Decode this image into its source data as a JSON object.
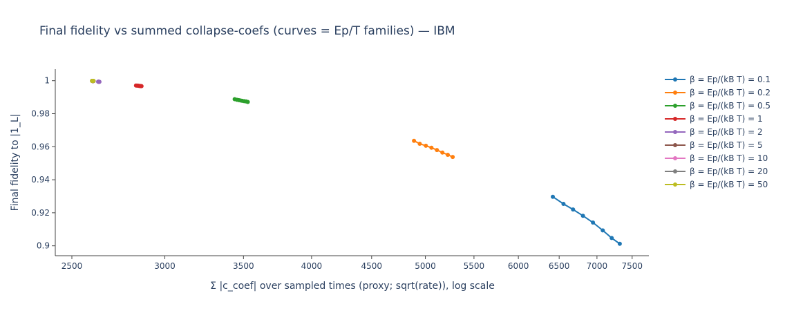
{
  "chart_data": {
    "type": "line",
    "title": "Final fidelity vs summed collapse-coefs (curves = Ep/T families) — IBM",
    "xlabel": "Σ |c_coef| over sampled times (proxy; sqrt(rate)), log scale",
    "ylabel": "Final fidelity to |1_L|",
    "xscale": "log",
    "xlim": [
      2420,
      7750
    ],
    "ylim": [
      0.894,
      1.007
    ],
    "xticks": [
      2500,
      3000,
      3500,
      4000,
      4500,
      5000,
      5500,
      6000,
      6500,
      7000,
      7500
    ],
    "xtick_labels": [
      "2500",
      "3000",
      "3500",
      "4000",
      "4500",
      "5000",
      "5500",
      "6000",
      "6500",
      "7000",
      "7500"
    ],
    "yticks": [
      0.9,
      0.92,
      0.94,
      0.96,
      0.98,
      1
    ],
    "ytick_labels": [
      "0.9",
      "0.92",
      "0.94",
      "0.96",
      "0.98",
      "1"
    ],
    "grid": false,
    "legend_position": "right",
    "series": [
      {
        "name": "β = Ep/(kB T) = 0.1",
        "color": "#1f77b4",
        "x": [
          6420,
          6555,
          6680,
          6810,
          6945,
          7080,
          7205,
          7320
        ],
        "y": [
          0.9297,
          0.9254,
          0.922,
          0.9182,
          0.9141,
          0.9093,
          0.9047,
          0.9012
        ]
      },
      {
        "name": "β = Ep/(kB T) = 0.2",
        "color": "#ff7f0e",
        "x": [
          4890,
          4945,
          5005,
          5060,
          5115,
          5170,
          5225,
          5275
        ],
        "y": [
          0.9636,
          0.9618,
          0.9606,
          0.9594,
          0.958,
          0.9565,
          0.9551,
          0.9538
        ]
      },
      {
        "name": "β = Ep/(kB T) = 0.5",
        "color": "#2ca02c",
        "x": [
          3440,
          3455,
          3468,
          3480,
          3492,
          3505,
          3518,
          3530
        ],
        "y": [
          0.9888,
          0.9884,
          0.9882,
          0.988,
          0.9878,
          0.9876,
          0.9874,
          0.9871
        ]
      },
      {
        "name": "β = Ep/(kB T) = 1",
        "color": "#d62728",
        "x": [
          2835,
          2840,
          2845,
          2850,
          2854,
          2858,
          2862,
          2866
        ],
        "y": [
          0.9971,
          0.997,
          0.997,
          0.9969,
          0.9968,
          0.9968,
          0.9967,
          0.9967
        ]
      },
      {
        "name": "β = Ep/(kB T) = 2",
        "color": "#9467bd",
        "x": [
          2632,
          2633,
          2634,
          2635,
          2636,
          2637,
          2638,
          2639
        ],
        "y": [
          0.9994,
          0.9994,
          0.9994,
          0.9994,
          0.9994,
          0.9993,
          0.9993,
          0.9993
        ]
      },
      {
        "name": "β = Ep/(kB T) = 5",
        "color": "#8c564b",
        "x": [
          2602,
          2603,
          2604,
          2605,
          2606,
          2607,
          2608,
          2609
        ],
        "y": [
          0.9998,
          0.9998,
          0.9998,
          0.9998,
          0.9998,
          0.9998,
          0.9998,
          0.9998
        ]
      },
      {
        "name": "β = Ep/(kB T) = 10",
        "color": "#e377c2",
        "x": [
          2601,
          2602,
          2603,
          2604,
          2605,
          2606,
          2607,
          2608
        ],
        "y": [
          0.9999,
          0.9999,
          0.9999,
          0.9999,
          0.9999,
          0.9999,
          0.9999,
          0.9999
        ]
      },
      {
        "name": "β = Ep/(kB T) = 20",
        "color": "#7f7f7f",
        "x": [
          2601,
          2602,
          2603,
          2604,
          2605,
          2606,
          2607,
          2608
        ],
        "y": [
          0.9999,
          0.9999,
          0.9999,
          0.9999,
          0.9999,
          0.9999,
          0.9999,
          0.9999
        ]
      },
      {
        "name": "β = Ep/(kB T) = 50",
        "color": "#bcbd22",
        "x": [
          2601,
          2602,
          2603,
          2604,
          2605,
          2606,
          2607,
          2608
        ],
        "y": [
          0.9999,
          0.9999,
          0.9999,
          0.9999,
          0.9999,
          0.9999,
          0.9999,
          0.9999
        ]
      }
    ]
  }
}
